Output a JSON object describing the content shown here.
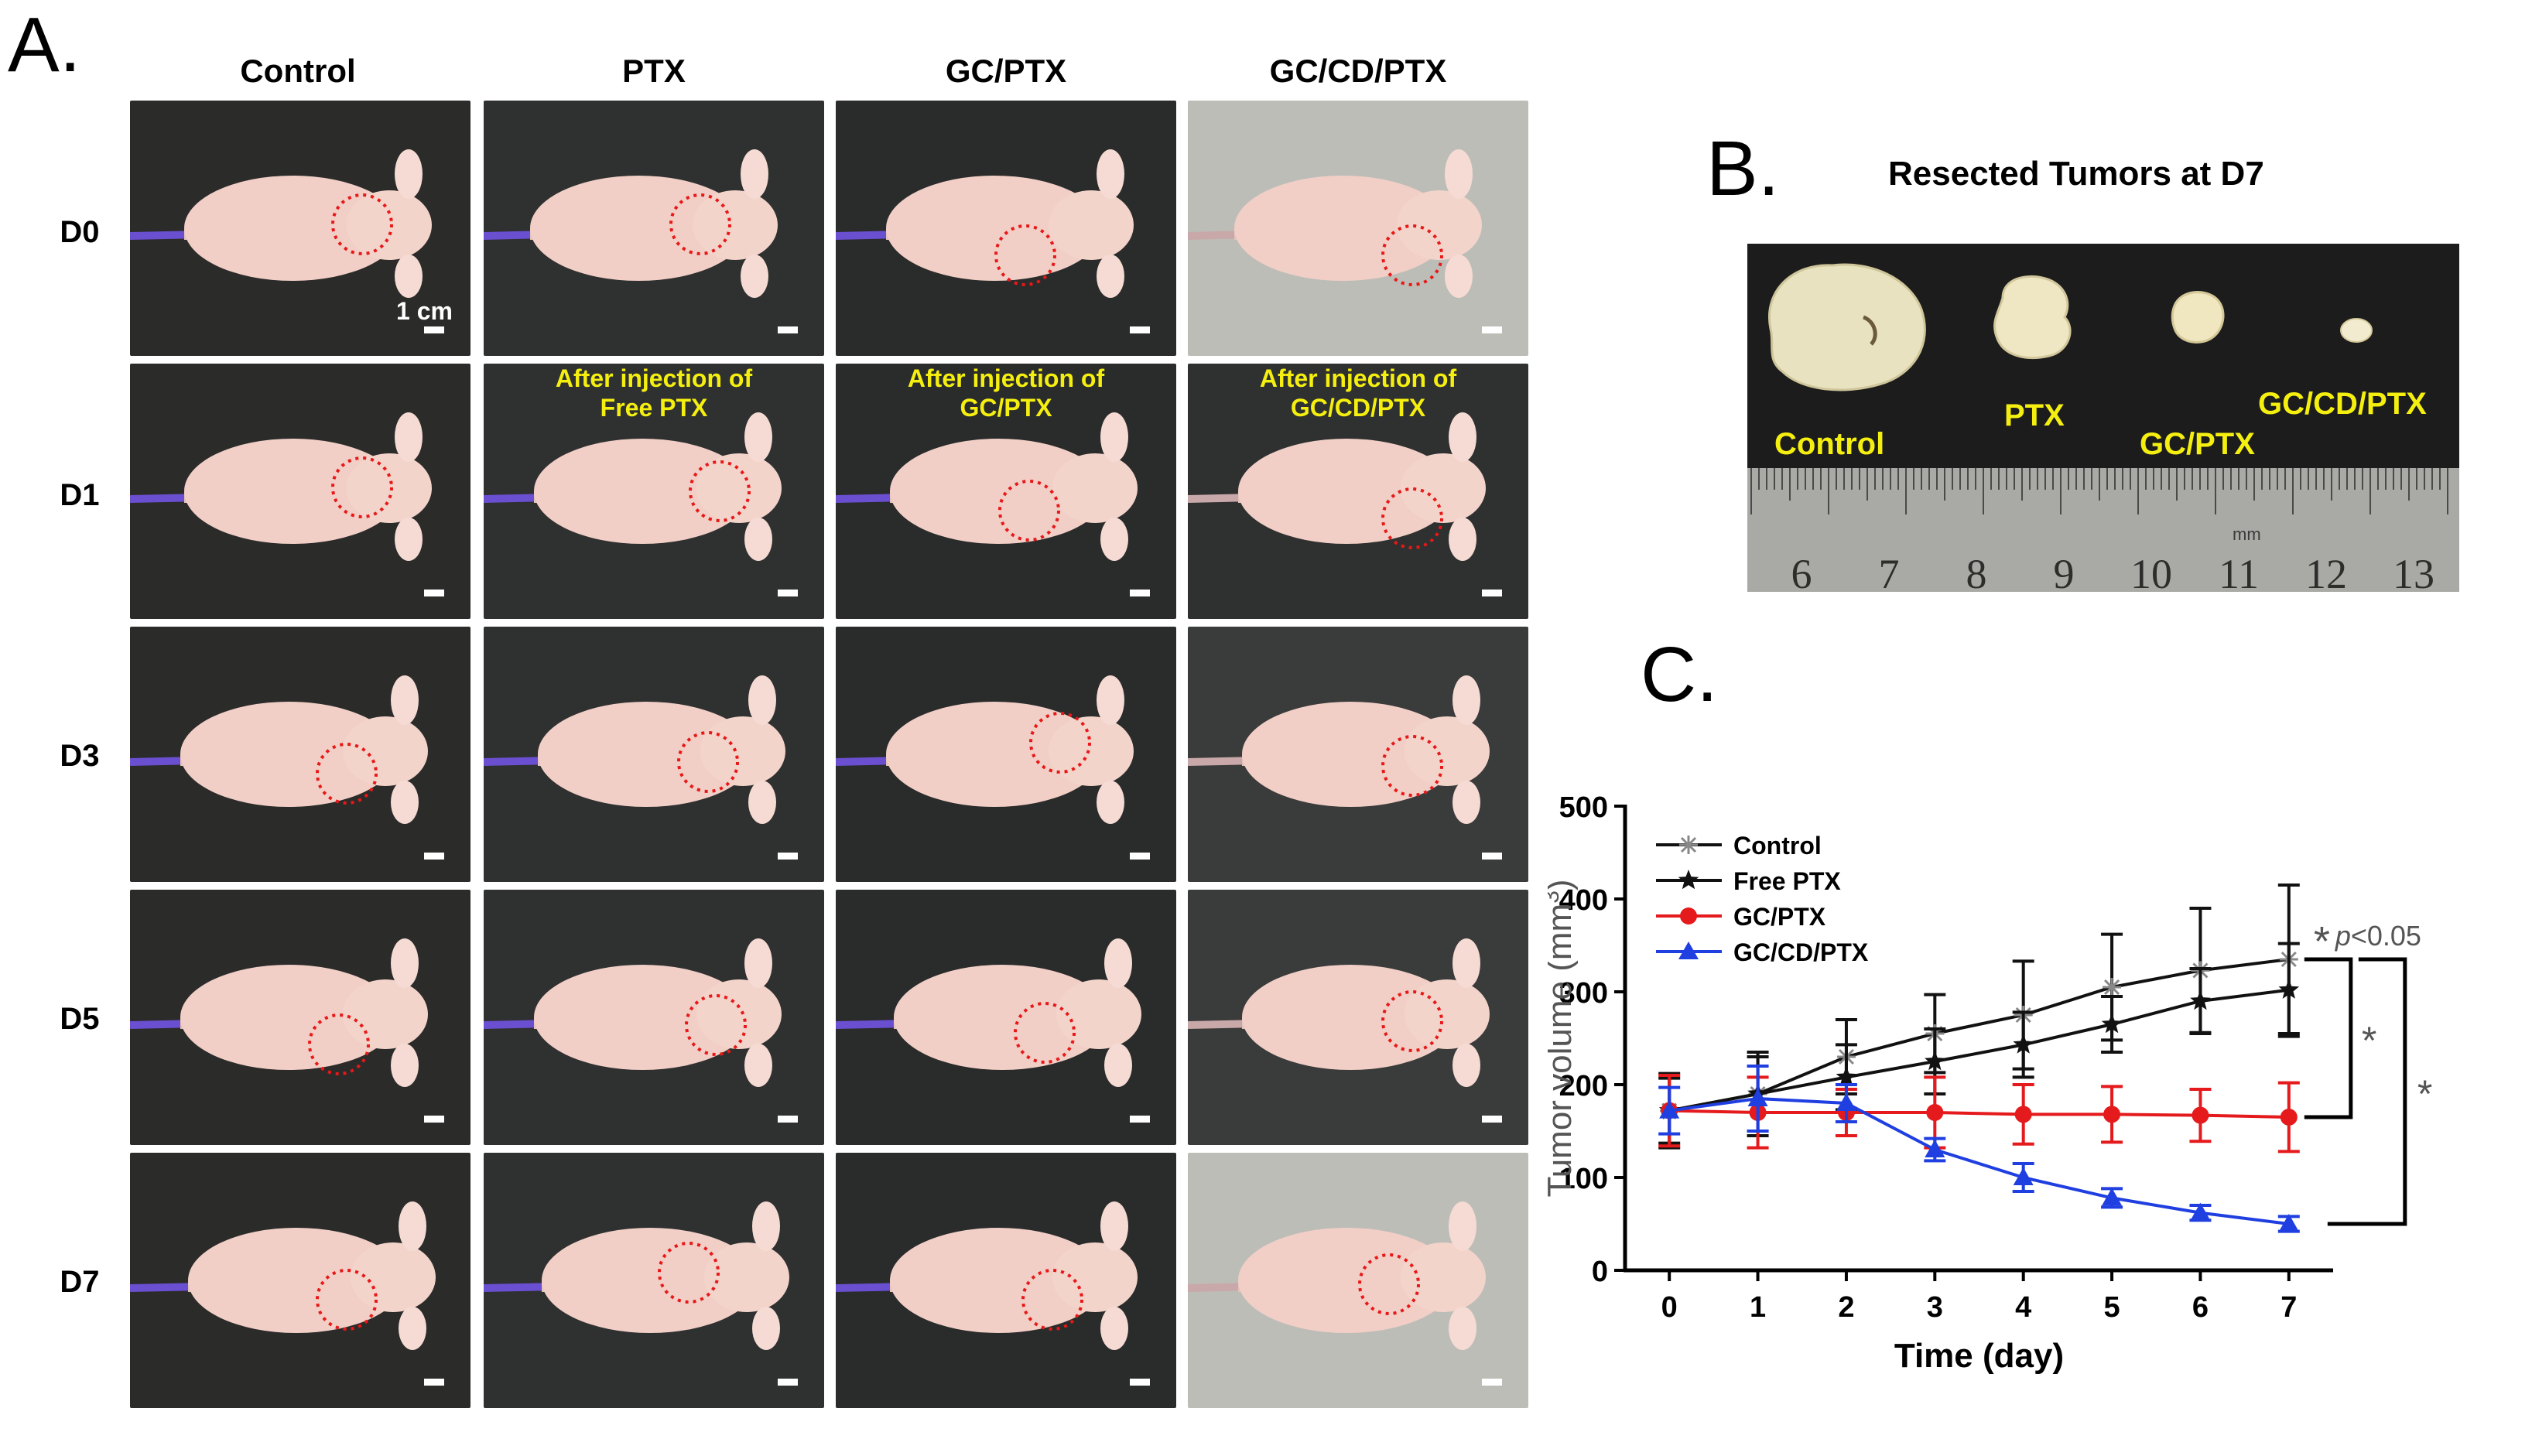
{
  "panel_a": {
    "letter": "A.",
    "columns": [
      "Control",
      "PTX",
      "GC/PTX",
      "GC/CD/PTX"
    ],
    "rows": [
      "D0",
      "D1",
      "D3",
      "D5",
      "D7"
    ],
    "scale_bar_label": "1 cm",
    "injection_notes": [
      {
        "line1": "After injection of",
        "line2": "Free PTX"
      },
      {
        "line1": "After injection of",
        "line2": "GC/PTX"
      },
      {
        "line1": "After injection of",
        "line2": "GC/CD/PTX"
      }
    ]
  },
  "panel_b": {
    "letter": "B.",
    "title": "Resected Tumors at D7",
    "labels": [
      "Control",
      "PTX",
      "GC/PTX",
      "GC/CD/PTX"
    ],
    "ruler_numbers": [
      "6",
      "7",
      "8",
      "9",
      "10",
      "11",
      "12",
      "13"
    ],
    "ruler_unit": "mm"
  },
  "panel_c": {
    "letter": "C."
  },
  "colors": {
    "control": "#111111",
    "free_ptx": "#111111",
    "gc_ptx": "#e41a1c",
    "gc_cd_ptx": "#1f3fe0",
    "annotation_yellow": "#f5ef10"
  },
  "chart_data": {
    "type": "line",
    "xlabel": "Time (day)",
    "ylabel": "Tumor volume (mm³)",
    "ylabel_base": "Tumor volume (mm",
    "ylabel_sup": "3",
    "ylabel_close": ")",
    "x": [
      0,
      1,
      2,
      3,
      4,
      5,
      6,
      7
    ],
    "xlim": [
      -0.5,
      7.5
    ],
    "ylim": [
      0,
      500
    ],
    "yticks": [
      0,
      100,
      200,
      300,
      400,
      500
    ],
    "series": [
      {
        "name": "Control",
        "marker": "asterisk",
        "values": [
          172,
          190,
          230,
          255,
          275,
          305,
          323,
          335
        ],
        "errors": [
          40,
          45,
          40,
          42,
          58,
          57,
          67,
          80
        ]
      },
      {
        "name": "Free PTX",
        "marker": "star",
        "values": [
          172,
          190,
          208,
          225,
          243,
          265,
          290,
          302
        ],
        "errors": [
          35,
          40,
          35,
          35,
          35,
          30,
          35,
          50
        ]
      },
      {
        "name": "GC/PTX",
        "marker": "circle",
        "values": [
          172,
          170,
          170,
          170,
          168,
          168,
          167,
          165
        ],
        "errors": [
          38,
          38,
          25,
          38,
          32,
          30,
          28,
          37
        ]
      },
      {
        "name": "GC/CD/PTX",
        "marker": "triangle",
        "values": [
          172,
          185,
          180,
          130,
          100,
          78,
          62,
          50
        ],
        "errors": [
          25,
          35,
          20,
          12,
          15,
          10,
          8,
          8
        ]
      }
    ],
    "annotations": {
      "significance_star": "*",
      "p_prefix": "p",
      "p_value": "<0.05",
      "bracket_stars": [
        "*",
        "*"
      ]
    }
  }
}
